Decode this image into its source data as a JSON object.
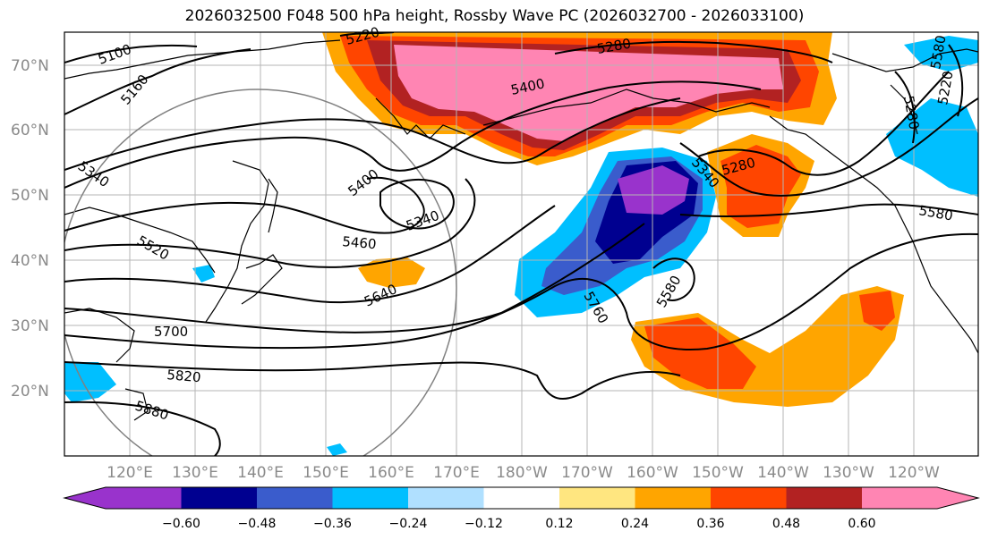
{
  "title": "2026032500 F048 500 hPa height, Rossby Wave PC (2026032700 - 2026033100)",
  "lat_labels": [
    "70°N",
    "60°N",
    "50°N",
    "40°N",
    "30°N",
    "20°N"
  ],
  "lon_labels": [
    "120°E",
    "130°E",
    "140°E",
    "150°E",
    "160°E",
    "170°E",
    "180°W",
    "170°W",
    "160°W",
    "150°W",
    "140°W",
    "130°W",
    "120°W"
  ],
  "contour_labels": [
    "5100",
    "5160",
    "5220",
    "5280",
    "5400",
    "5340",
    "5400",
    "5340",
    "5460",
    "5520",
    "5640",
    "5700",
    "5820",
    "5880",
    "5760",
    "5580",
    "5280",
    "5340",
    "5580",
    "5280",
    "5220",
    "5580"
  ],
  "colorbar": {
    "colors": [
      "#9933cc",
      "#000090",
      "#3a5ccc",
      "#00bfff",
      "#b0e0ff",
      "#ffffff",
      "#ffe680",
      "#ffa500",
      "#ff4500",
      "#b22222",
      "#ff85b3"
    ],
    "tick_labels": [
      "−0.60",
      "−0.48",
      "−0.36",
      "−0.24",
      "−0.12",
      "0.12",
      "0.24",
      "0.36",
      "0.48",
      "0.60"
    ]
  }
}
